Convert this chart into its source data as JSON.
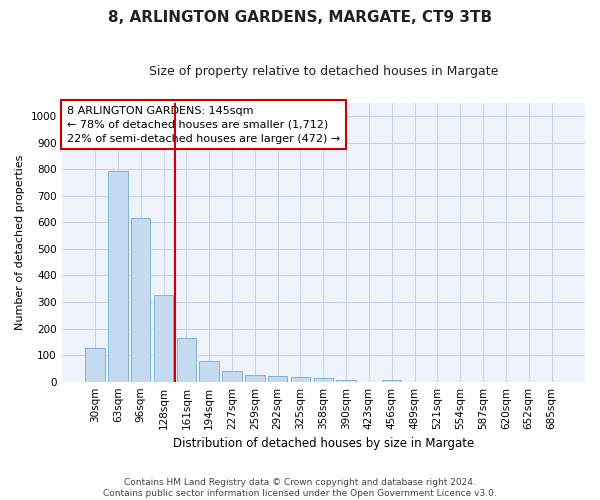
{
  "title": "8, ARLINGTON GARDENS, MARGATE, CT9 3TB",
  "subtitle": "Size of property relative to detached houses in Margate",
  "xlabel": "Distribution of detached houses by size in Margate",
  "ylabel": "Number of detached properties",
  "bar_labels": [
    "30sqm",
    "63sqm",
    "96sqm",
    "128sqm",
    "161sqm",
    "194sqm",
    "227sqm",
    "259sqm",
    "292sqm",
    "325sqm",
    "358sqm",
    "390sqm",
    "423sqm",
    "456sqm",
    "489sqm",
    "521sqm",
    "554sqm",
    "587sqm",
    "620sqm",
    "652sqm",
    "685sqm"
  ],
  "bar_values": [
    125,
    795,
    615,
    328,
    165,
    78,
    40,
    27,
    22,
    18,
    15,
    8,
    0,
    8,
    0,
    0,
    0,
    0,
    0,
    0,
    0
  ],
  "bar_color": "#c5d9f1",
  "bar_edge_color": "#6baed6",
  "vline_color": "#cc0000",
  "annotation_text": "8 ARLINGTON GARDENS: 145sqm\n← 78% of detached houses are smaller (1,712)\n22% of semi-detached houses are larger (472) →",
  "annotation_box_color": "#ffffff",
  "annotation_box_edge": "#cc0000",
  "ylim": [
    0,
    1050
  ],
  "yticks": [
    0,
    100,
    200,
    300,
    400,
    500,
    600,
    700,
    800,
    900,
    1000
  ],
  "footer_line1": "Contains HM Land Registry data © Crown copyright and database right 2024.",
  "footer_line2": "Contains public sector information licensed under the Open Government Licence v3.0.",
  "bg_color": "#eef2fb",
  "grid_color": "#c8d0e8",
  "title_fontsize": 11,
  "subtitle_fontsize": 9,
  "xlabel_fontsize": 8.5,
  "ylabel_fontsize": 8,
  "tick_fontsize": 7.5,
  "annotation_fontsize": 8,
  "footer_fontsize": 6.5
}
